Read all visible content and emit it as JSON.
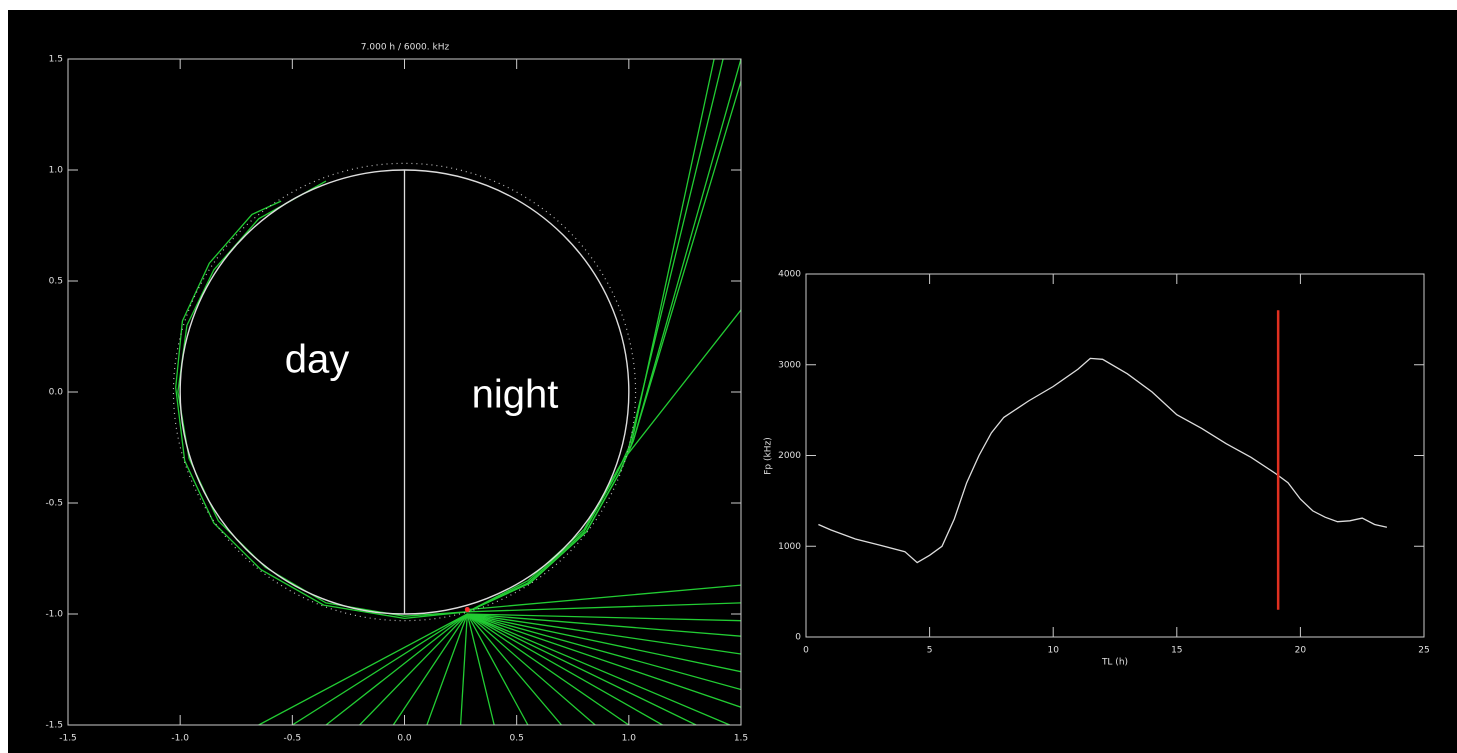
{
  "chart_data": [
    {
      "type": "line",
      "title": "7.000 h   /   6000. kHz",
      "xlim": [
        -1.5,
        1.5
      ],
      "ylim": [
        -1.5,
        1.5
      ],
      "xticks": [
        -1.5,
        {
          "value": -1,
          "label": "-1.0"
        },
        -0.5,
        {
          "value": 0,
          "label": "0.0"
        },
        0.5,
        {
          "value": 1,
          "label": "1.0"
        },
        1.5
      ],
      "yticks": [
        -1.5,
        {
          "value": -1,
          "label": "-1.0"
        },
        -0.5,
        {
          "value": 0,
          "label": "0.0"
        },
        0.5,
        {
          "value": 1,
          "label": "1.0"
        },
        1.5
      ],
      "annotations": [
        "day",
        "night"
      ],
      "circles": [
        {
          "r": 1,
          "color": "#dddddd"
        },
        {
          "r": 1.03,
          "color": "#bbbbbb",
          "dotted": true
        }
      ],
      "marker": {
        "x": 0.28,
        "y": -0.98,
        "color": "#ff3030"
      },
      "series": [
        {
          "color": "#dddddd",
          "x": [
            0,
            0
          ],
          "values": [
            -1,
            1
          ]
        },
        {
          "color": "#22cc33",
          "x": [
            0.28,
            0.0,
            -0.35,
            -0.62,
            -0.83,
            -0.96,
            -1.01,
            -0.97,
            -0.85,
            -0.65,
            -0.35
          ],
          "values": [
            -0.99,
            -1.01,
            -0.95,
            -0.79,
            -0.58,
            -0.3,
            0.0,
            0.3,
            0.55,
            0.78,
            0.95
          ]
        },
        {
          "color": "#22cc33",
          "x": [
            0.28,
            0.0,
            -0.36,
            -0.64,
            -0.85,
            -0.98,
            -1.02,
            -0.99,
            -0.87,
            -0.68,
            -0.55
          ],
          "values": [
            -0.99,
            -1.02,
            -0.96,
            -0.8,
            -0.59,
            -0.31,
            0.02,
            0.32,
            0.58,
            0.8,
            0.86
          ]
        },
        {
          "color": "#22cc33",
          "x": [
            0.28,
            0.55,
            0.8,
            0.95,
            0.98,
            1.5
          ],
          "values": [
            -0.99,
            -0.85,
            -0.62,
            -0.35,
            -0.3,
            0.37
          ]
        },
        {
          "color": "#22cc33",
          "x": [
            0.28,
            0.55,
            0.8,
            0.95,
            1.0,
            1.42
          ],
          "values": [
            -0.99,
            -0.86,
            -0.63,
            -0.36,
            -0.25,
            1.5
          ]
        },
        {
          "color": "#22cc33",
          "x": [
            0.28,
            0.56,
            0.81,
            0.96,
            1.01,
            1.38
          ],
          "values": [
            -0.99,
            -0.86,
            -0.63,
            -0.36,
            -0.24,
            1.5
          ]
        },
        {
          "color": "#22cc33",
          "x": [
            0.28,
            0.56,
            0.81,
            0.96,
            1.02,
            1.5
          ],
          "values": [
            -0.99,
            -0.86,
            -0.63,
            -0.36,
            -0.22,
            1.5
          ]
        },
        {
          "color": "#22cc33",
          "x": [
            0.28,
            0.56,
            0.81,
            0.96,
            1.02,
            1.5
          ],
          "values": [
            -0.99,
            -0.86,
            -0.63,
            -0.36,
            -0.22,
            1.4
          ]
        },
        {
          "color": "#22cc33",
          "x": [
            0.28,
            -0.65
          ],
          "values": [
            -1.0,
            -1.5
          ]
        },
        {
          "color": "#22cc33",
          "x": [
            0.28,
            -0.5
          ],
          "values": [
            -1.0,
            -1.5
          ]
        },
        {
          "color": "#22cc33",
          "x": [
            0.28,
            -0.35
          ],
          "values": [
            -1.0,
            -1.5
          ]
        },
        {
          "color": "#22cc33",
          "x": [
            0.28,
            -0.2
          ],
          "values": [
            -1.0,
            -1.5
          ]
        },
        {
          "color": "#22cc33",
          "x": [
            0.28,
            -0.05
          ],
          "values": [
            -1.0,
            -1.5
          ]
        },
        {
          "color": "#22cc33",
          "x": [
            0.28,
            0.1
          ],
          "values": [
            -1.0,
            -1.5
          ]
        },
        {
          "color": "#22cc33",
          "x": [
            0.28,
            0.25
          ],
          "values": [
            -1.0,
            -1.5
          ]
        },
        {
          "color": "#22cc33",
          "x": [
            0.28,
            0.4
          ],
          "values": [
            -1.0,
            -1.5
          ]
        },
        {
          "color": "#22cc33",
          "x": [
            0.28,
            0.55
          ],
          "values": [
            -1.0,
            -1.5
          ]
        },
        {
          "color": "#22cc33",
          "x": [
            0.28,
            0.7
          ],
          "values": [
            -1.0,
            -1.5
          ]
        },
        {
          "color": "#22cc33",
          "x": [
            0.28,
            0.85
          ],
          "values": [
            -1.0,
            -1.5
          ]
        },
        {
          "color": "#22cc33",
          "x": [
            0.28,
            1.0
          ],
          "values": [
            -1.0,
            -1.5
          ]
        },
        {
          "color": "#22cc33",
          "x": [
            0.28,
            1.15
          ],
          "values": [
            -1.0,
            -1.5
          ]
        },
        {
          "color": "#22cc33",
          "x": [
            0.28,
            1.3
          ],
          "values": [
            -1.0,
            -1.5
          ]
        },
        {
          "color": "#22cc33",
          "x": [
            0.28,
            1.45
          ],
          "values": [
            -1.0,
            -1.5
          ]
        },
        {
          "color": "#22cc33",
          "x": [
            0.28,
            1.5
          ],
          "values": [
            -1.0,
            -1.42
          ]
        },
        {
          "color": "#22cc33",
          "x": [
            0.28,
            1.5
          ],
          "values": [
            -1.0,
            -1.34
          ]
        },
        {
          "color": "#22cc33",
          "x": [
            0.28,
            1.5
          ],
          "values": [
            -1.0,
            -1.26
          ]
        },
        {
          "color": "#22cc33",
          "x": [
            0.28,
            1.5
          ],
          "values": [
            -1.0,
            -1.18
          ]
        },
        {
          "color": "#22cc33",
          "x": [
            0.28,
            1.5
          ],
          "values": [
            -1.0,
            -1.1
          ]
        },
        {
          "color": "#22cc33",
          "x": [
            0.28,
            1.5
          ],
          "values": [
            -1.0,
            -1.03
          ]
        },
        {
          "color": "#22cc33",
          "x": [
            0.28,
            1.5
          ],
          "values": [
            -0.99,
            -0.95
          ]
        },
        {
          "color": "#22cc33",
          "x": [
            0.28,
            1.5
          ],
          "values": [
            -0.98,
            -0.87
          ]
        }
      ]
    },
    {
      "type": "line",
      "xlabel": "TL (h)",
      "ylabel": "Fp (kHz)",
      "xlim": [
        0,
        25
      ],
      "ylim": [
        0,
        4000
      ],
      "xticks": [
        0,
        5,
        10,
        15,
        20,
        25
      ],
      "yticks": [
        0,
        1000,
        2000,
        3000,
        4000
      ],
      "x": [
        0.5,
        1,
        2,
        3,
        4,
        4.5,
        5,
        5.5,
        6,
        6.5,
        7,
        7.5,
        8,
        9,
        10,
        11,
        11.5,
        12,
        13,
        14,
        15,
        16,
        17,
        18,
        19,
        19.5,
        20,
        20.5,
        21,
        21.5,
        22,
        22.5,
        23,
        23.5
      ],
      "series": [
        {
          "color": "#dddddd",
          "values": [
            1240,
            1180,
            1080,
            1010,
            940,
            820,
            900,
            1000,
            1300,
            1700,
            2000,
            2250,
            2420,
            2600,
            2760,
            2950,
            3070,
            3060,
            2900,
            2700,
            2450,
            2300,
            2130,
            1980,
            1800,
            1700,
            1520,
            1390,
            1320,
            1270,
            1280,
            1310,
            1240,
            1210
          ]
        }
      ],
      "vline": {
        "x": 19.1,
        "from": 300,
        "to": 3600,
        "color": "#e03020"
      }
    }
  ]
}
